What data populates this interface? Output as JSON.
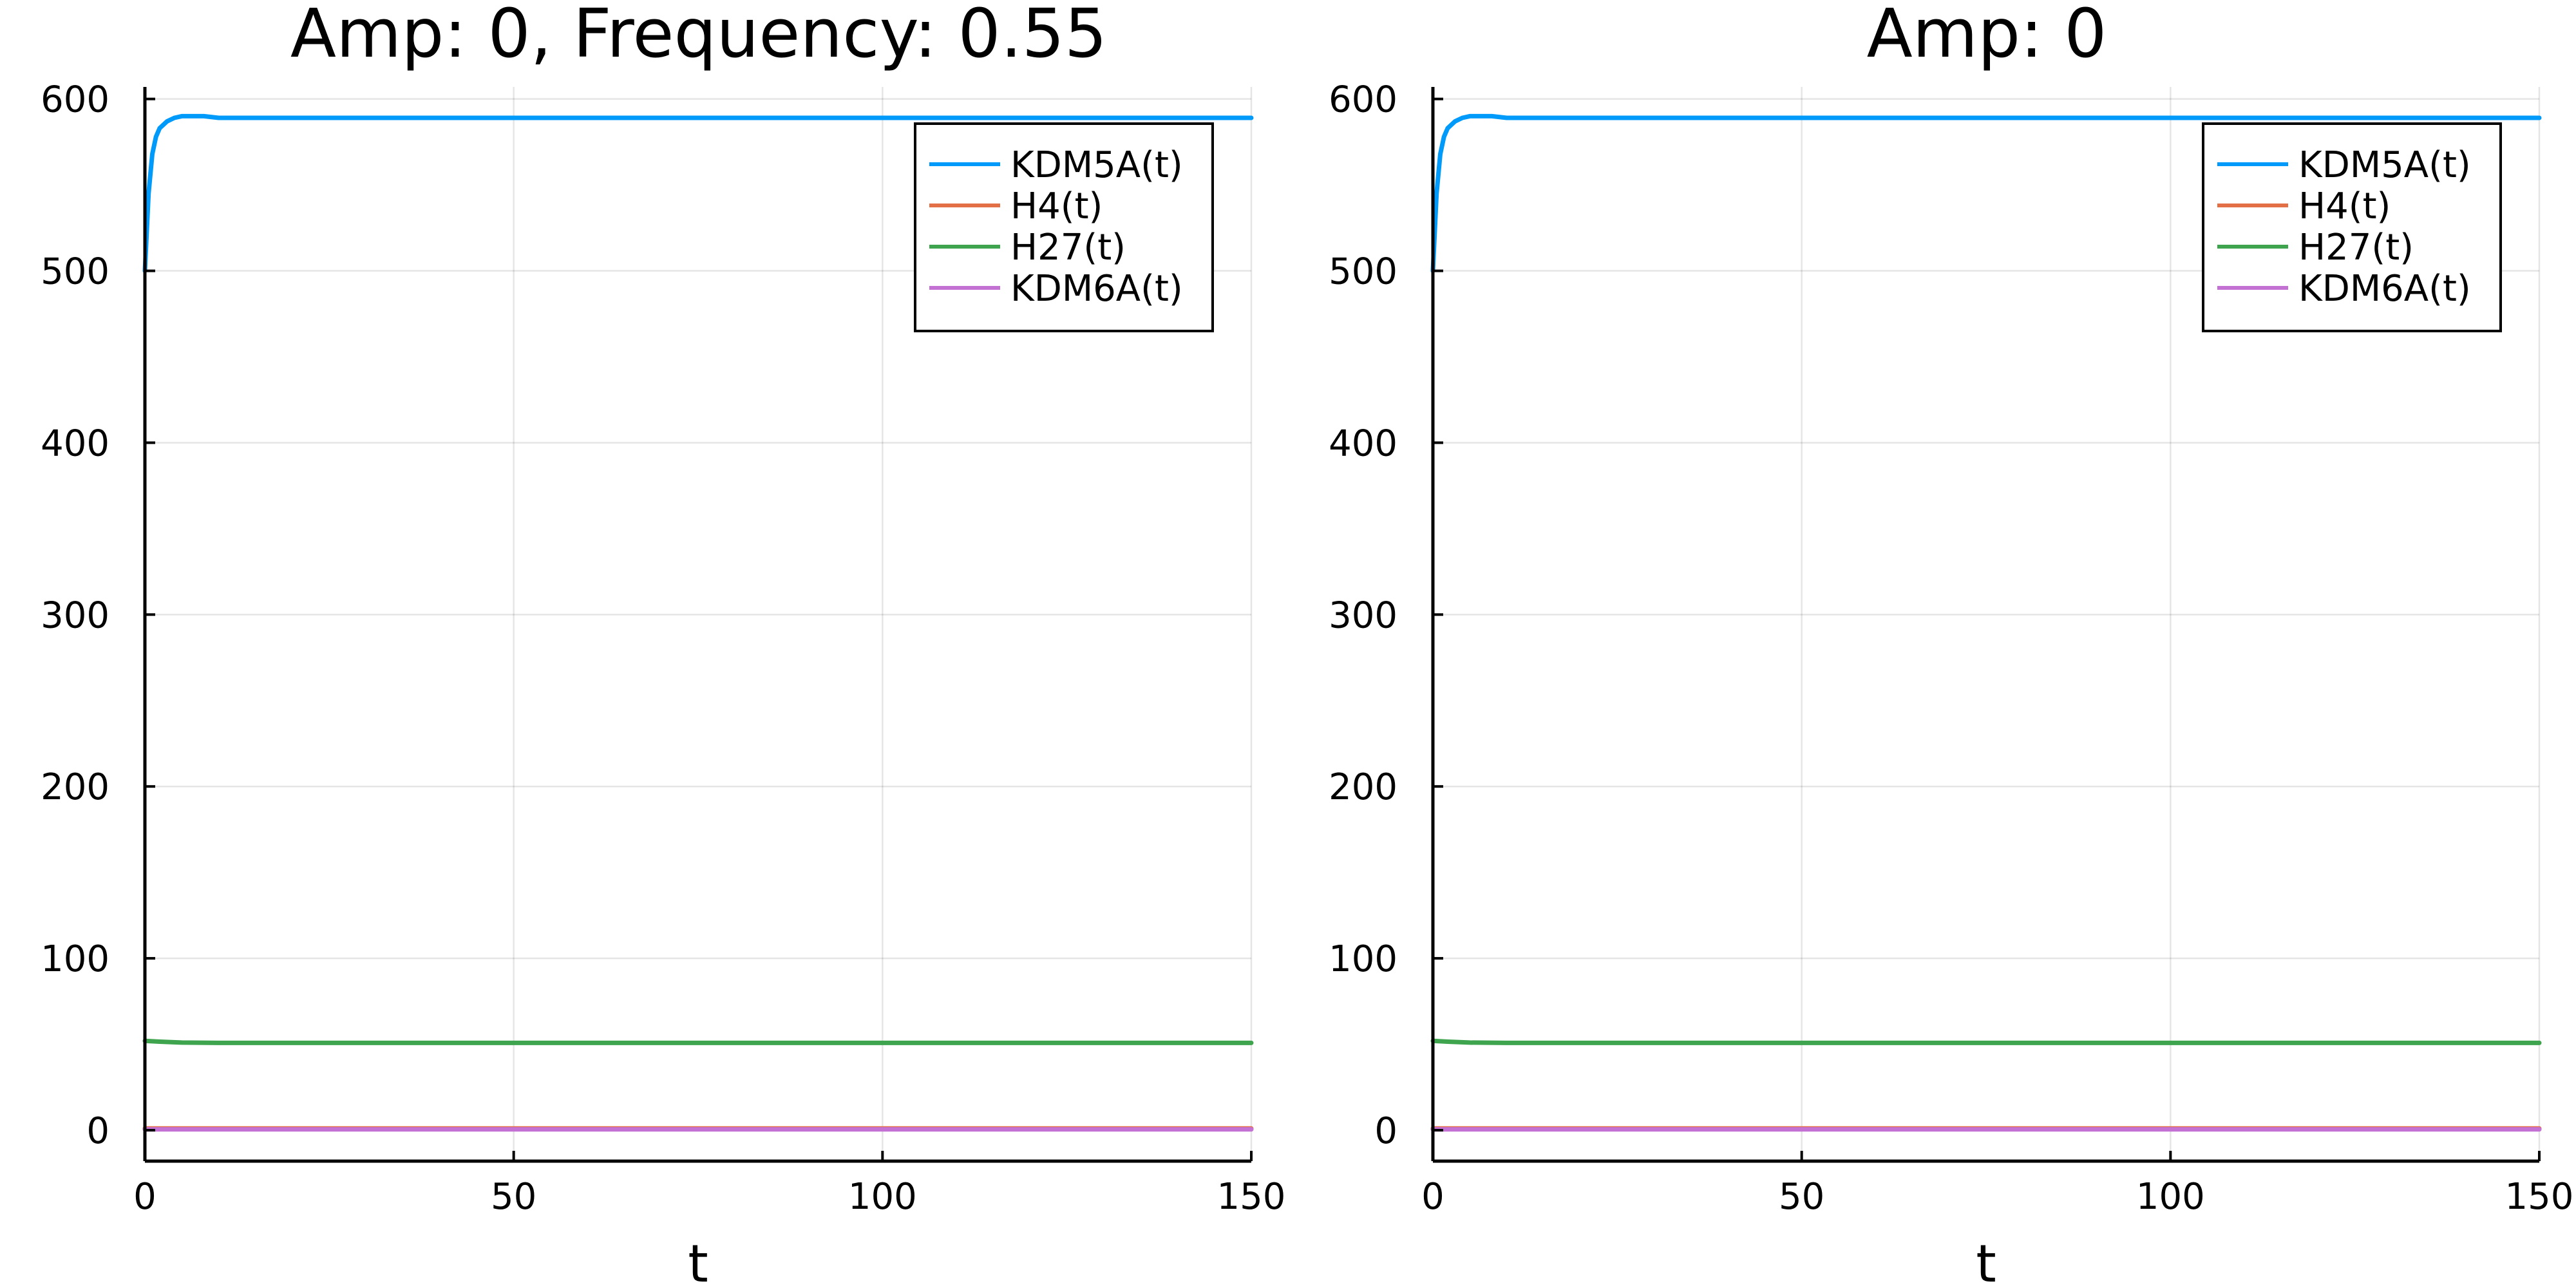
{
  "chart_data": [
    {
      "type": "line",
      "title": "Amp: 0, Frequency: 0.55",
      "xlabel": "t",
      "ylabel": "",
      "xlim": [
        0,
        150
      ],
      "ylim": [
        -18,
        607
      ],
      "xticks": [
        0,
        50,
        100,
        150
      ],
      "yticks": [
        0,
        100,
        200,
        300,
        400,
        500,
        600
      ],
      "grid": true,
      "legend_position": "top-right",
      "series": [
        {
          "name": "KDM5A(t)",
          "color": "#009AFA",
          "x": [
            0,
            0.5,
            1,
            1.5,
            2,
            3,
            4,
            5,
            6,
            8,
            10,
            20,
            50,
            100,
            150
          ],
          "y": [
            500,
            545,
            568,
            578,
            583,
            587,
            589,
            590,
            590,
            590,
            589,
            589,
            589,
            589,
            589
          ]
        },
        {
          "name": "H4(t)",
          "color": "#E36F47",
          "x": [
            0,
            150
          ],
          "y": [
            1,
            1
          ]
        },
        {
          "name": "H27(t)",
          "color": "#3EA44E",
          "x": [
            0,
            2,
            5,
            10,
            20,
            150
          ],
          "y": [
            52,
            51.5,
            51,
            50.8,
            50.8,
            50.8
          ]
        },
        {
          "name": "KDM6A(t)",
          "color": "#C371D2",
          "x": [
            0,
            150
          ],
          "y": [
            0.5,
            0.5
          ]
        }
      ]
    },
    {
      "type": "line",
      "title": "Amp: 0",
      "xlabel": "t",
      "ylabel": "",
      "xlim": [
        0,
        150
      ],
      "ylim": [
        -18,
        607
      ],
      "xticks": [
        0,
        50,
        100,
        150
      ],
      "yticks": [
        0,
        100,
        200,
        300,
        400,
        500,
        600
      ],
      "grid": true,
      "legend_position": "top-right",
      "series": [
        {
          "name": "KDM5A(t)",
          "color": "#009AFA",
          "x": [
            0,
            0.5,
            1,
            1.5,
            2,
            3,
            4,
            5,
            6,
            8,
            10,
            20,
            50,
            100,
            150
          ],
          "y": [
            500,
            545,
            568,
            578,
            583,
            587,
            589,
            590,
            590,
            590,
            589,
            589,
            589,
            589,
            589
          ]
        },
        {
          "name": "H4(t)",
          "color": "#E36F47",
          "x": [
            0,
            150
          ],
          "y": [
            1,
            1
          ]
        },
        {
          "name": "H27(t)",
          "color": "#3EA44E",
          "x": [
            0,
            2,
            5,
            10,
            20,
            150
          ],
          "y": [
            52,
            51.5,
            51,
            50.8,
            50.8,
            50.8
          ]
        },
        {
          "name": "KDM6A(t)",
          "color": "#C371D2",
          "x": [
            0,
            150
          ],
          "y": [
            0.5,
            0.5
          ]
        }
      ]
    }
  ]
}
